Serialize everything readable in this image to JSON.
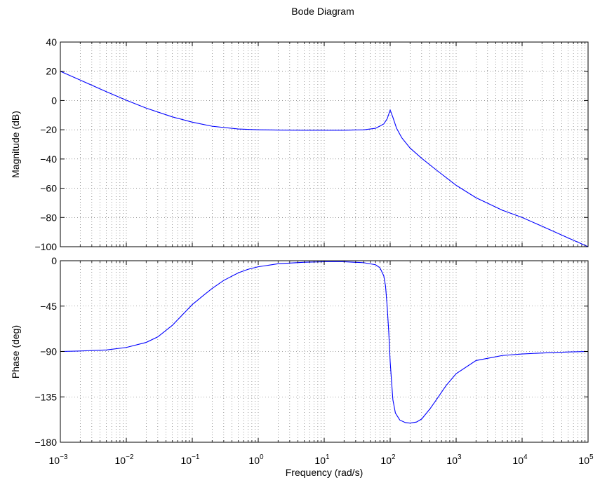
{
  "chart_data": {
    "type": "line",
    "title": "Bode Diagram",
    "xlabel": "Frequency  (rad/s)",
    "x_scale": "log",
    "xlim": [
      0.001,
      100000
    ],
    "x_ticks": [
      0.001,
      0.01,
      0.1,
      1,
      10,
      100,
      1000,
      10000,
      100000
    ],
    "x_tick_labels": [
      {
        "base": "10",
        "exp": "−3"
      },
      {
        "base": "10",
        "exp": "−2"
      },
      {
        "base": "10",
        "exp": "−1"
      },
      {
        "base": "10",
        "exp": "0"
      },
      {
        "base": "10",
        "exp": "1"
      },
      {
        "base": "10",
        "exp": "2"
      },
      {
        "base": "10",
        "exp": "3"
      },
      {
        "base": "10",
        "exp": "4"
      },
      {
        "base": "10",
        "exp": "5"
      }
    ],
    "grid": true,
    "line_color": "#0000ff",
    "panels": [
      {
        "name": "magnitude",
        "ylabel": "Magnitude (dB)",
        "ylim": [
          -100,
          40
        ],
        "y_ticks": [
          40,
          20,
          0,
          -20,
          -40,
          -60,
          -80,
          -100
        ],
        "y_tick_labels": [
          "40",
          "20",
          "0",
          "−20",
          "−40",
          "−60",
          "−80",
          "−100"
        ],
        "series": [
          {
            "x": [
              0.001,
              0.002,
              0.005,
              0.01,
              0.02,
              0.05,
              0.1,
              0.2,
              0.5,
              1,
              2,
              5,
              10,
              20,
              40,
              60,
              80,
              90,
              100,
              110,
              125,
              150,
              200,
              300,
              500,
              1000,
              2000,
              5000,
              10000,
              20000,
              50000,
              100000
            ],
            "y": [
              20,
              14,
              6,
              0.2,
              -5.2,
              -11.2,
              -14.8,
              -17.6,
              -19.5,
              -20,
              -20.2,
              -20.3,
              -20.3,
              -20.3,
              -20,
              -19,
              -16,
              -12.5,
              -6.5,
              -11.5,
              -19,
              -25.5,
              -32.5,
              -39.5,
              -47.5,
              -58,
              -66.5,
              -75,
              -80,
              -86,
              -94,
              -100
            ]
          }
        ]
      },
      {
        "name": "phase",
        "ylabel": "Phase (deg)",
        "ylim": [
          -180,
          0
        ],
        "y_ticks": [
          0,
          -45,
          -90,
          -135,
          -180
        ],
        "y_tick_labels": [
          "0",
          "−45",
          "−90",
          "−135",
          "−180"
        ],
        "series": [
          {
            "x": [
              0.001,
              0.002,
              0.005,
              0.01,
              0.02,
              0.03,
              0.05,
              0.07,
              0.1,
              0.15,
              0.2,
              0.3,
              0.5,
              0.7,
              1,
              2,
              5,
              10,
              20,
              40,
              60,
              70,
              80,
              85,
              90,
              95,
              100,
              105,
              110,
              120,
              140,
              170,
              200,
              250,
              300,
              400,
              500,
              700,
              1000,
              2000,
              5000,
              10000,
              20000,
              50000,
              100000
            ],
            "y": [
              -90,
              -89.5,
              -88.5,
              -86,
              -81,
              -75.5,
              -64,
              -54,
              -43.5,
              -34,
              -27.5,
              -19.5,
              -12,
              -8.5,
              -6,
              -3,
              -1.5,
              -1,
              -1,
              -2,
              -4,
              -7,
              -15,
              -25,
              -45,
              -70,
              -100,
              -120,
              -138,
              -151,
              -158,
              -160.5,
              -161,
              -160,
              -157,
              -147,
              -138,
              -124,
              -112,
              -99,
              -94,
              -92.5,
              -91.5,
              -90.5,
              -90
            ]
          }
        ]
      }
    ]
  }
}
